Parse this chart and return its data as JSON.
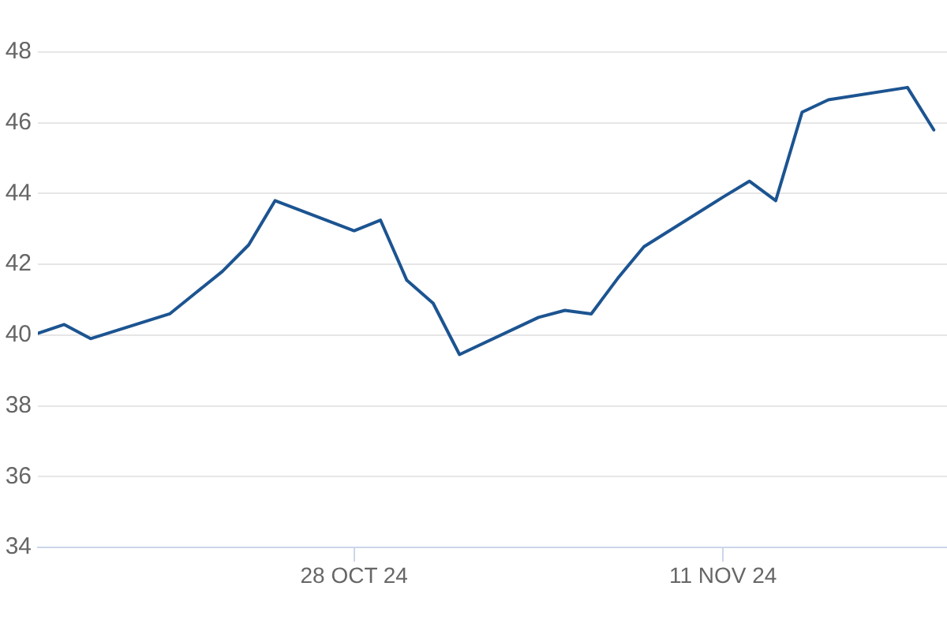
{
  "chart_data": {
    "type": "line",
    "x": [
      "2024-10-16",
      "2024-10-17",
      "2024-10-18",
      "2024-10-21",
      "2024-10-22",
      "2024-10-23",
      "2024-10-24",
      "2024-10-25",
      "2024-10-28",
      "2024-10-29",
      "2024-10-30",
      "2024-10-31",
      "2024-11-01",
      "2024-11-04",
      "2024-11-05",
      "2024-11-06",
      "2024-11-07",
      "2024-11-08",
      "2024-11-11",
      "2024-11-12",
      "2024-11-13",
      "2024-11-14",
      "2024-11-15",
      "2024-11-18",
      "2024-11-19"
    ],
    "values": [
      40.05,
      40.3,
      39.9,
      40.6,
      41.2,
      41.8,
      42.55,
      43.8,
      42.95,
      43.25,
      41.55,
      40.9,
      39.45,
      40.5,
      40.7,
      40.6,
      41.6,
      42.5,
      43.9,
      44.35,
      43.8,
      46.3,
      46.65,
      47.0,
      45.8
    ],
    "color": "#1c5491",
    "xlim": [
      "2024-10-16",
      "2024-11-19T12:00"
    ],
    "xticks": [
      {
        "value": "2024-10-28",
        "label": "28 OCT 24"
      },
      {
        "value": "2024-11-11",
        "label": "11 NOV 24"
      }
    ],
    "ylim": [
      34,
      48
    ],
    "yticks": [
      34,
      36,
      38,
      40,
      42,
      44,
      46,
      48
    ],
    "grid": "y",
    "legend": false,
    "marker": "none",
    "line_style": "solid"
  }
}
